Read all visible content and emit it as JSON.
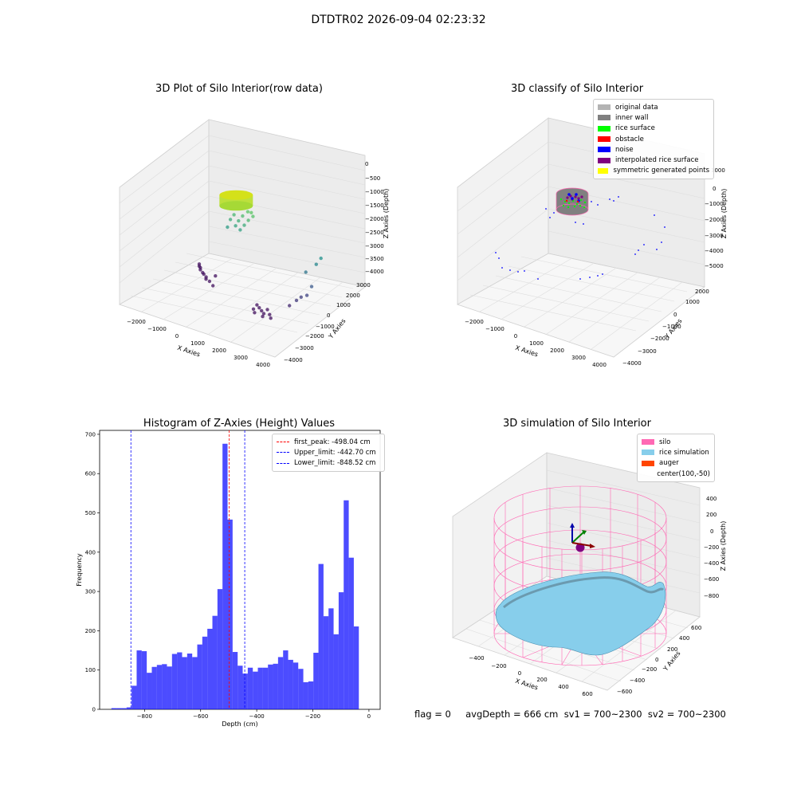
{
  "suptitle": "DTDTR02 2026-09-04 02:23:32",
  "status_line": "flag = 0     avgDepth = 666 cm  sv1 = 700~2300  sv2 = 700~2300",
  "chart_data": [
    {
      "type": "scatter",
      "title": "3D Plot of Silo Interior(row data)",
      "xlabel": "X Axies",
      "ylabel": "Y Axies",
      "zlabel": "Z Axies (Depth)",
      "x_ticks": [
        "−2000",
        "−1000",
        "0",
        "1000",
        "2000",
        "3000",
        "4000"
      ],
      "y_ticks": [
        "−4000",
        "−3000",
        "−2000",
        "−1000",
        "0",
        "1000",
        "2000",
        "3000"
      ],
      "z_ticks": [
        "0",
        "−500",
        "−1000",
        "−1500",
        "−2000",
        "−2500",
        "−3000",
        "−3500",
        "−4000"
      ],
      "xlim": [
        -2500,
        4200
      ],
      "ylim": [
        -4300,
        3300
      ],
      "zlim": [
        -4200,
        200
      ],
      "cluster": {
        "x": 300,
        "y": 100,
        "z_top": -450,
        "z_bottom": -850,
        "rx": 350,
        "ry": 350,
        "color": "#d4e11a"
      },
      "points": [
        {
          "x": -50,
          "y": 300,
          "z": -1500
        },
        {
          "x": -150,
          "y": 250,
          "z": -1800
        },
        {
          "x": 80,
          "y": 350,
          "z": -1300
        },
        {
          "x": 500,
          "y": 250,
          "z": -1200
        },
        {
          "x": 700,
          "y": 300,
          "z": -1000
        },
        {
          "x": 900,
          "y": 200,
          "z": -950
        },
        {
          "x": 800,
          "y": 150,
          "z": -1250
        },
        {
          "x": 450,
          "y": 150,
          "z": -1700
        },
        {
          "x": 1000,
          "y": 150,
          "z": -1050
        },
        {
          "x": 600,
          "y": 200,
          "z": -1500
        },
        {
          "x": 300,
          "y": 300,
          "z": -1450
        },
        {
          "x": 200,
          "y": 250,
          "z": -1650
        },
        {
          "x": 3600,
          "y": 800,
          "z": -2000
        },
        {
          "x": 3500,
          "y": 600,
          "z": -2200
        },
        {
          "x": 3200,
          "y": 300,
          "z": -2500
        },
        {
          "x": 3400,
          "y": 400,
          "z": -3000
        },
        {
          "x": 3300,
          "y": 200,
          "z": -3300
        },
        {
          "x": 3000,
          "y": -100,
          "z": -3500
        },
        {
          "x": 3100,
          "y": 100,
          "z": -3400
        },
        {
          "x": 2800,
          "y": -300,
          "z": -3700
        },
        {
          "x": -2000,
          "y": 1500,
          "z": -4000
        },
        {
          "x": -1900,
          "y": 1300,
          "z": -4000
        },
        {
          "x": -1700,
          "y": 1000,
          "z": -4000
        },
        {
          "x": -1500,
          "y": 800,
          "z": -4000
        },
        {
          "x": -1200,
          "y": 500,
          "z": -4000
        },
        {
          "x": -900,
          "y": 200,
          "z": -4000
        },
        {
          "x": -1800,
          "y": 1200,
          "z": -4000
        },
        {
          "x": -1400,
          "y": 700,
          "z": -4000
        },
        {
          "x": -1100,
          "y": 300,
          "z": -4000
        },
        {
          "x": -1000,
          "y": 900,
          "z": -4000
        },
        {
          "x": -600,
          "y": -100,
          "z": -4000
        },
        {
          "x": 1500,
          "y": -500,
          "z": -4000
        },
        {
          "x": 1700,
          "y": -700,
          "z": -4000
        },
        {
          "x": 1900,
          "y": -900,
          "z": -4000
        },
        {
          "x": 2100,
          "y": -1100,
          "z": -4000
        },
        {
          "x": 1800,
          "y": -1300,
          "z": -4000
        },
        {
          "x": 2000,
          "y": -600,
          "z": -4000
        },
        {
          "x": 2300,
          "y": -1000,
          "z": -4000
        },
        {
          "x": 1600,
          "y": -1000,
          "z": -4000
        },
        {
          "x": 2200,
          "y": -1400,
          "z": -4000
        },
        {
          "x": 2500,
          "y": -1300,
          "z": -4000
        }
      ]
    },
    {
      "type": "scatter",
      "title": "3D classify of Silo Interior",
      "xlabel": "X Axies",
      "ylabel": "Y Axies",
      "zlabel": "Z Axies (Depth)",
      "x_ticks": [
        "−2000",
        "−1000",
        "0",
        "1000",
        "2000",
        "3000",
        "4000"
      ],
      "y_ticks": [
        "−4000",
        "−3000",
        "−2000",
        "−1000",
        "0",
        "1000",
        "2000"
      ],
      "z_ticks": [
        "1000",
        "0",
        "−1000",
        "−2000",
        "−3000",
        "−4000",
        "−5000"
      ],
      "legend": [
        {
          "label": "original data",
          "color": "#b3b3b3"
        },
        {
          "label": "inner wall",
          "color": "#808080"
        },
        {
          "label": "rice surface",
          "color": "#00ff00"
        },
        {
          "label": "obstacle",
          "color": "#ff0000"
        },
        {
          "label": "noise",
          "color": "#0000ff"
        },
        {
          "label": "interpolated rice surface",
          "color": "#800080"
        },
        {
          "label": "symmetric generated points",
          "color": "#ffff00"
        }
      ],
      "legend_position": "top-right"
    },
    {
      "type": "bar",
      "title": "Histogram of Z-Axies (Height) Values",
      "xlabel": "Depth (cm)",
      "ylabel": "Frequency",
      "xlim": [
        -960,
        40
      ],
      "ylim": [
        0,
        710
      ],
      "x_ticks": [
        "−800",
        "−600",
        "−400",
        "−200",
        "0"
      ],
      "y_ticks": [
        "0",
        "100",
        "200",
        "300",
        "400",
        "500",
        "600",
        "700"
      ],
      "bin_start": -918,
      "bin_width": 18,
      "values": [
        3,
        3,
        3,
        5,
        60,
        150,
        148,
        93,
        108,
        113,
        115,
        109,
        141,
        145,
        133,
        142,
        133,
        165,
        185,
        205,
        238,
        306,
        676,
        483,
        146,
        111,
        91,
        106,
        96,
        106,
        106,
        114,
        116,
        133,
        150,
        126,
        119,
        103,
        69,
        71,
        144,
        370,
        237,
        257,
        191,
        298,
        532,
        386,
        211
      ],
      "color": "#0000ff",
      "opacity": 0.7,
      "vlines": [
        {
          "label": "first_peak: -498.04 cm",
          "x": -498.04,
          "color": "#ff0000"
        },
        {
          "label": "Upper_limit: -442.70 cm",
          "x": -442.7,
          "color": "#0000ff"
        },
        {
          "label": "Lower_limit: -848.52 cm",
          "x": -848.52,
          "color": "#0000ff"
        }
      ],
      "legend_position": "top-right"
    },
    {
      "type": "surface",
      "title": "3D simulation of Silo Interior",
      "xlabel": "X Axies",
      "ylabel": "Y Axies",
      "zlabel": "Z Axies (Depth)",
      "x_ticks": [
        "−400",
        "−200",
        "0",
        "200",
        "400",
        "600"
      ],
      "y_ticks": [
        "−600",
        "−400",
        "−200",
        "0",
        "200",
        "400",
        "600"
      ],
      "z_ticks": [
        "400",
        "200",
        "0",
        "−200",
        "−400",
        "−600",
        "−800"
      ],
      "legend": [
        {
          "label": "silo",
          "color": "#ff69b4"
        },
        {
          "label": "rice simulation",
          "color": "#87ceeb"
        },
        {
          "label": "auger",
          "color": "#ff4500"
        },
        {
          "label": "center(100,-50)",
          "color": ""
        }
      ],
      "legend_position": "top-right"
    }
  ]
}
